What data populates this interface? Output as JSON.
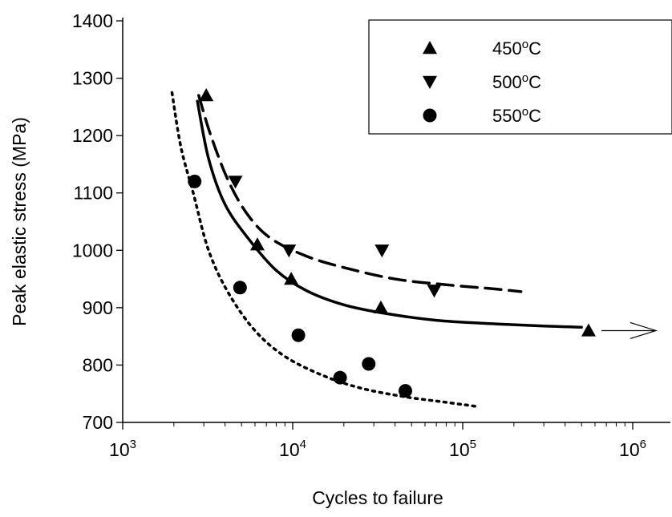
{
  "chart_data": {
    "type": "scatter",
    "xlabel": "Cycles to failure",
    "ylabel": "Peak elastic stress (MPa)",
    "x_scale": "log",
    "xlim": [
      1000,
      1000000
    ],
    "ylim": [
      700,
      1400
    ],
    "x_ticks": [
      {
        "value": 1000,
        "base": "10",
        "exp": "3"
      },
      {
        "value": 10000,
        "base": "10",
        "exp": "4"
      },
      {
        "value": 100000,
        "base": "10",
        "exp": "5"
      },
      {
        "value": 1000000,
        "base": "10",
        "exp": "6"
      }
    ],
    "y_ticks": [
      700,
      800,
      900,
      1000,
      1100,
      1200,
      1300,
      1400
    ],
    "grid": false,
    "legend_position": "top-right",
    "series": [
      {
        "name": "450°C",
        "marker": "triangle-up",
        "points": [
          [
            3100,
            1270
          ],
          [
            6200,
            1010
          ],
          [
            9800,
            950
          ],
          [
            33000,
            900
          ],
          [
            550000,
            860
          ]
        ],
        "fit": [
          [
            2750,
            1260
          ],
          [
            3200,
            1160
          ],
          [
            4000,
            1080
          ],
          [
            5500,
            1020
          ],
          [
            8000,
            965
          ],
          [
            12000,
            930
          ],
          [
            20000,
            905
          ],
          [
            35000,
            890
          ],
          [
            70000,
            878
          ],
          [
            150000,
            872
          ],
          [
            300000,
            868
          ],
          [
            500000,
            866
          ]
        ],
        "fit_style": "solid",
        "runout_arrow": true
      },
      {
        "name": "500°C",
        "marker": "triangle-down",
        "points": [
          [
            4600,
            1120
          ],
          [
            9500,
            1000
          ],
          [
            33500,
            1000
          ],
          [
            68000,
            930
          ]
        ],
        "fit": [
          [
            2800,
            1270
          ],
          [
            3300,
            1200
          ],
          [
            4200,
            1120
          ],
          [
            5500,
            1060
          ],
          [
            7500,
            1020
          ],
          [
            12000,
            990
          ],
          [
            20000,
            970
          ],
          [
            40000,
            950
          ],
          [
            80000,
            940
          ],
          [
            150000,
            933
          ],
          [
            220000,
            928
          ]
        ],
        "fit_style": "dashed"
      },
      {
        "name": "550°C",
        "marker": "circle",
        "points": [
          [
            2650,
            1120
          ],
          [
            4900,
            935
          ],
          [
            10800,
            852
          ],
          [
            19000,
            778
          ],
          [
            28000,
            802
          ],
          [
            46000,
            755
          ]
        ],
        "fit": [
          [
            1950,
            1275
          ],
          [
            2200,
            1180
          ],
          [
            2600,
            1100
          ],
          [
            3200,
            1000
          ],
          [
            4200,
            925
          ],
          [
            6000,
            860
          ],
          [
            9000,
            815
          ],
          [
            15000,
            782
          ],
          [
            25000,
            760
          ],
          [
            45000,
            745
          ],
          [
            80000,
            735
          ],
          [
            120000,
            728
          ]
        ],
        "fit_style": "dotted"
      }
    ]
  }
}
